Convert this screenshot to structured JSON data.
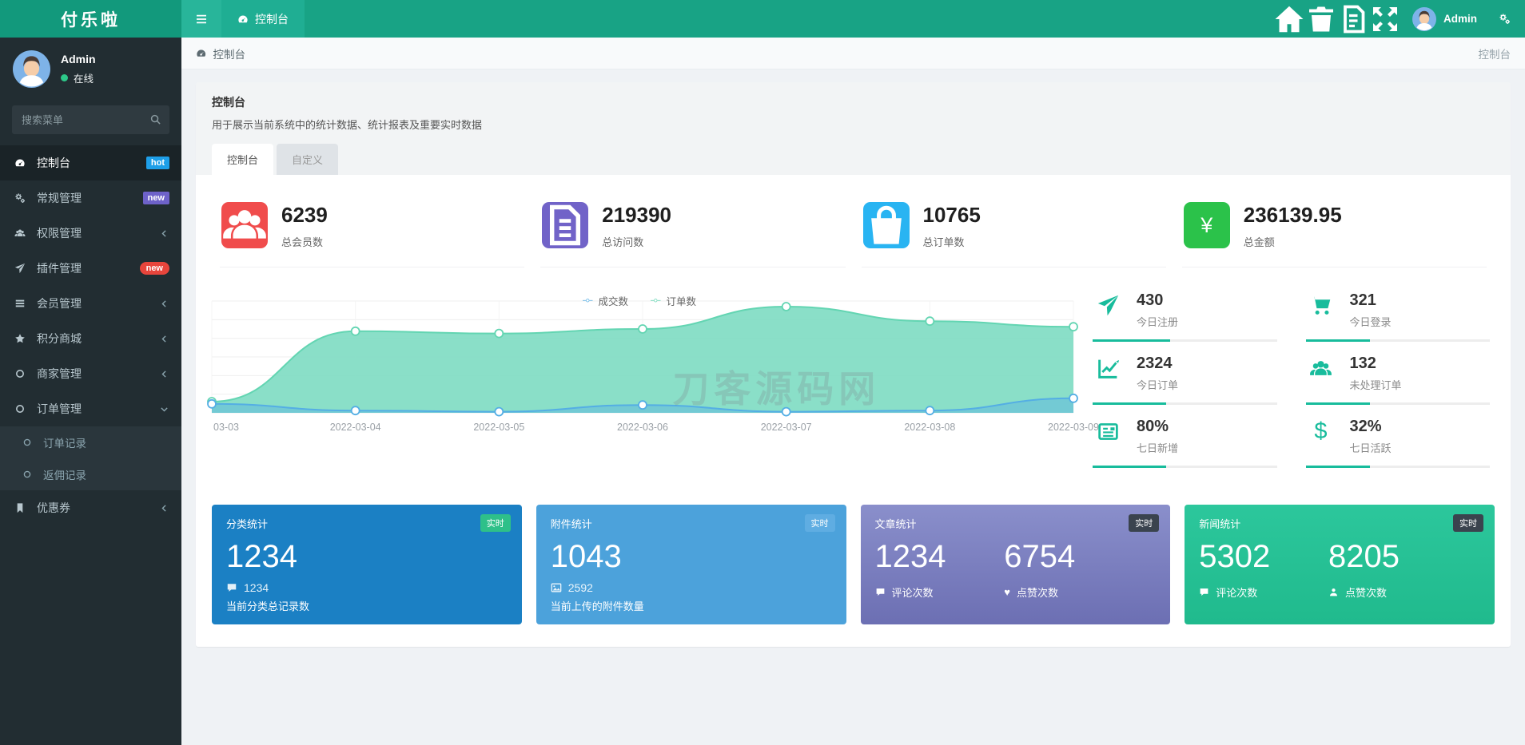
{
  "topbar": {
    "logo": "付乐啦",
    "tab_label": "控制台",
    "right_icons": [
      {
        "name": "home-icon"
      },
      {
        "name": "trash-icon"
      },
      {
        "name": "docs-icon"
      },
      {
        "name": "fullscreen-icon"
      }
    ],
    "user_name": "Admin"
  },
  "sidebar": {
    "user": {
      "name": "Admin",
      "status": "在线"
    },
    "search_placeholder": "搜索菜单",
    "items": [
      {
        "label": "控制台",
        "icon": "gauge-icon",
        "active": true,
        "badge": {
          "text": "hot",
          "color": "#1E9FE9",
          "pill": false
        }
      },
      {
        "label": "常规管理",
        "icon": "cogs-icon",
        "badge": {
          "text": "new",
          "color": "#6E62C9",
          "pill": false
        }
      },
      {
        "label": "权限管理",
        "icon": "users-icon",
        "arrow": "left"
      },
      {
        "label": "插件管理",
        "icon": "rocket-icon",
        "badge": {
          "text": "new",
          "color": "#E7453C",
          "pill": true
        }
      },
      {
        "label": "会员管理",
        "icon": "list-icon",
        "arrow": "left"
      },
      {
        "label": "积分商城",
        "icon": "star-icon",
        "arrow": "left"
      },
      {
        "label": "商家管理",
        "icon": "circle-icon",
        "arrow": "left"
      },
      {
        "label": "订单管理",
        "icon": "circle-icon",
        "arrow": "down",
        "open": true,
        "children": [
          {
            "label": "订单记录",
            "icon": "circle-icon"
          },
          {
            "label": "返佣记录",
            "icon": "circle-icon"
          }
        ]
      },
      {
        "label": "优惠券",
        "icon": "bookmark-icon",
        "arrow": "left"
      }
    ]
  },
  "breadcrumb": {
    "left": "控制台",
    "right": "控制台"
  },
  "panel": {
    "title": "控制台",
    "description": "用于展示当前系统中的统计数据、统计报表及重要实时数据",
    "tabs": [
      {
        "label": "控制台",
        "active": true
      },
      {
        "label": "自定义",
        "active": false
      }
    ]
  },
  "summary_cards": [
    {
      "value": "6239",
      "label": "总会员数",
      "icon": "members-icon",
      "color": "#F04C4C"
    },
    {
      "value": "219390",
      "label": "总访问数",
      "icon": "views-icon",
      "color": "#7163C8"
    },
    {
      "value": "10765",
      "label": "总订单数",
      "icon": "orders-icon",
      "color": "#29B4F2"
    },
    {
      "value": "236139.95",
      "label": "总金额",
      "icon": "yen-icon",
      "color": "#2BC24A"
    }
  ],
  "chart_data": {
    "type": "area",
    "x": [
      "03-03",
      "2022-03-04",
      "2022-03-05",
      "2022-03-06",
      "2022-03-07",
      "2022-03-08",
      "2022-03-09"
    ],
    "series": [
      {
        "name": "成交数",
        "color": "#54AEE4",
        "fill": "rgba(84,174,228,0.42)",
        "values": [
          8,
          2,
          1,
          7,
          1,
          2,
          13
        ]
      },
      {
        "name": "订单数",
        "color": "#63D5B2",
        "fill": "rgba(128,220,195,0.92)",
        "values": [
          10,
          73,
          71,
          75,
          95,
          82,
          77
        ]
      }
    ],
    "ylim": [
      0,
      100
    ],
    "note": "values are relative percentages estimated from pixel heights; no y-axis labels shown",
    "legend_position": "top-center",
    "grid": true,
    "watermark": "刀客源码网"
  },
  "quick_stats": [
    {
      "value": "430",
      "label": "今日注册",
      "icon": "rocket-icon",
      "progress": 42
    },
    {
      "value": "321",
      "label": "今日登录",
      "icon": "cart-icon",
      "progress": 35
    },
    {
      "value": "2324",
      "label": "今日订单",
      "icon": "chart-icon",
      "progress": 40
    },
    {
      "value": "132",
      "label": "未处理订单",
      "icon": "group-icon",
      "progress": 35
    },
    {
      "value": "80%",
      "label": "七日新增",
      "icon": "news-icon",
      "progress": 40
    },
    {
      "value": "32%",
      "label": "七日活跃",
      "icon": "dollar-icon",
      "progress": 35
    }
  ],
  "stat_cards": [
    {
      "title": "分类统计",
      "badge": "实时",
      "badge_color": "#2EC089",
      "bg": "#1B80C4",
      "big": "1234",
      "meta_icon": "comment-icon",
      "meta_text": "1234",
      "caption": "当前分类总记录数"
    },
    {
      "title": "附件统计",
      "badge": "实时",
      "badge_color": "#5FADE2",
      "bg": "#4CA2DB",
      "big": "1043",
      "meta_icon": "image-icon",
      "meta_text": "2592",
      "caption": "当前上传的附件数量"
    },
    {
      "title": "文章统计",
      "badge": "实时",
      "badge_color": "#3A434E",
      "bg": "linear-gradient(180deg,#8A8FCB,#6C6FB3)",
      "columns": [
        {
          "value": "1234",
          "icon": "comment-icon",
          "label": "评论次数"
        },
        {
          "value": "6754",
          "icon": "heart-icon",
          "label": "点赞次数"
        }
      ]
    },
    {
      "title": "新闻统计",
      "badge": "实时",
      "badge_color": "#3A434E",
      "bg": "linear-gradient(180deg,#2CC79C,#20BA8D)",
      "columns": [
        {
          "value": "5302",
          "icon": "comment-icon",
          "label": "评论次数"
        },
        {
          "value": "8205",
          "icon": "user-icon",
          "label": "点赞次数"
        }
      ]
    }
  ]
}
